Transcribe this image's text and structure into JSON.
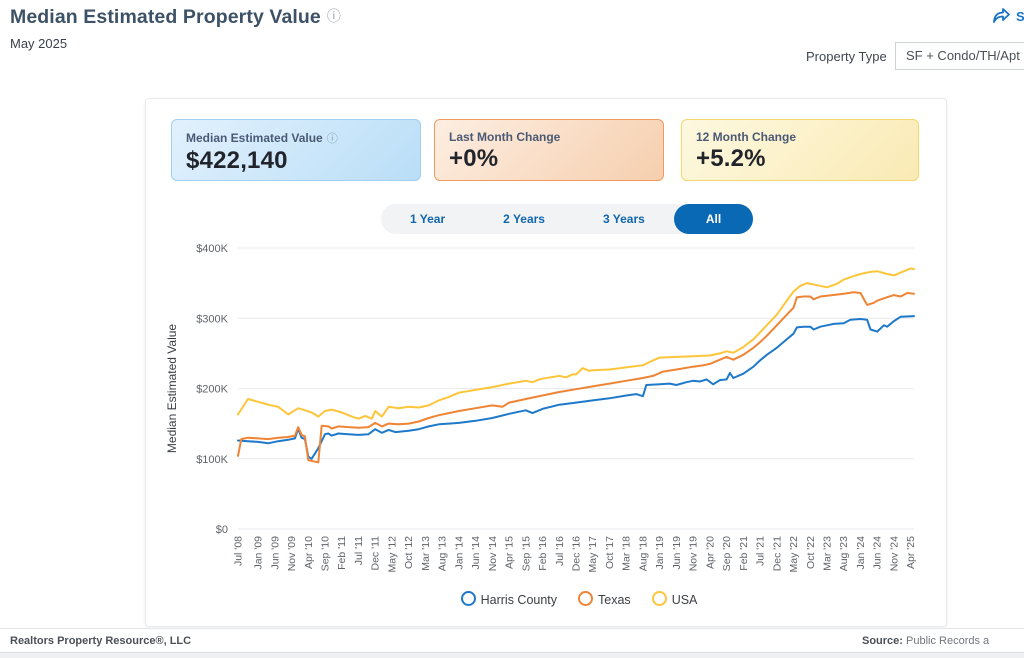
{
  "header": {
    "title": "Median Estimated Property Value",
    "date": "May 2025",
    "share_label": "S",
    "property_type_label": "Property Type",
    "property_type_value": "SF + Condo/TH/Apt"
  },
  "icons": {
    "info": "ⓘ"
  },
  "stat_cards": [
    {
      "label": "Median Estimated Value",
      "value": "$422,140"
    },
    {
      "label": "Last Month Change",
      "value": "+0%"
    },
    {
      "label": "12 Month Change",
      "value": "+5.2%"
    }
  ],
  "range_tabs": [
    {
      "label": "1 Year",
      "selected": false
    },
    {
      "label": "2 Years",
      "selected": false
    },
    {
      "label": "3 Years",
      "selected": false
    },
    {
      "label": "All",
      "selected": true
    }
  ],
  "chart_data": {
    "type": "line",
    "title": "Median Estimated Property Value",
    "ylabel": "Median Estimated Value",
    "values_unit": "USD thousands",
    "ylim": [
      0,
      400
    ],
    "grid": "horizontal",
    "legend_position": "bottom",
    "y_ticks": [
      {
        "label": "$0",
        "value": 0
      },
      {
        "label": "$100K",
        "value": 100
      },
      {
        "label": "$200K",
        "value": 200
      },
      {
        "label": "$300K",
        "value": 300
      },
      {
        "label": "$400K",
        "value": 400
      }
    ],
    "x_month_range": [
      0,
      202
    ],
    "x_start": "Jul 2008",
    "x_end": "May 2025",
    "x_ticks": [
      {
        "label": "Jul '08",
        "month": 0
      },
      {
        "label": "Jan '09",
        "month": 6
      },
      {
        "label": "Jun '09",
        "month": 11
      },
      {
        "label": "Nov '09",
        "month": 16
      },
      {
        "label": "Apr '10",
        "month": 21
      },
      {
        "label": "Sep '10",
        "month": 26
      },
      {
        "label": "Feb '11",
        "month": 31
      },
      {
        "label": "Jul '11",
        "month": 36
      },
      {
        "label": "Dec '11",
        "month": 41
      },
      {
        "label": "May '12",
        "month": 46
      },
      {
        "label": "Oct '12",
        "month": 51
      },
      {
        "label": "Mar '13",
        "month": 56
      },
      {
        "label": "Aug '13",
        "month": 61
      },
      {
        "label": "Jan '14",
        "month": 66
      },
      {
        "label": "Jun '14",
        "month": 71
      },
      {
        "label": "Nov '14",
        "month": 76
      },
      {
        "label": "Apr '15",
        "month": 81
      },
      {
        "label": "Sep '15",
        "month": 86
      },
      {
        "label": "Feb '16",
        "month": 91
      },
      {
        "label": "Jul '16",
        "month": 96
      },
      {
        "label": "Dec '16",
        "month": 101
      },
      {
        "label": "May '17",
        "month": 106
      },
      {
        "label": "Oct '17",
        "month": 111
      },
      {
        "label": "Mar '18",
        "month": 116
      },
      {
        "label": "Aug '18",
        "month": 121
      },
      {
        "label": "Jan '19",
        "month": 126
      },
      {
        "label": "Jun '19",
        "month": 131
      },
      {
        "label": "Nov '19",
        "month": 136
      },
      {
        "label": "Apr '20",
        "month": 141
      },
      {
        "label": "Sep '20",
        "month": 146
      },
      {
        "label": "Feb '21",
        "month": 151
      },
      {
        "label": "Jul '21",
        "month": 156
      },
      {
        "label": "Dec '21",
        "month": 161
      },
      {
        "label": "May '22",
        "month": 166
      },
      {
        "label": "Oct '22",
        "month": 171
      },
      {
        "label": "Mar '23",
        "month": 176
      },
      {
        "label": "Aug '23",
        "month": 181
      },
      {
        "label": "Jan '24",
        "month": 186
      },
      {
        "label": "Jun '24",
        "month": 191
      },
      {
        "label": "Nov '24",
        "month": 196
      },
      {
        "label": "Apr '25",
        "month": 201
      }
    ],
    "series": [
      {
        "name": "Harris County",
        "color": "#1e79ca",
        "points": [
          [
            0,
            126
          ],
          [
            3,
            125
          ],
          [
            6,
            124
          ],
          [
            9,
            122
          ],
          [
            12,
            125
          ],
          [
            15,
            127
          ],
          [
            17,
            129
          ],
          [
            18,
            143
          ],
          [
            19,
            130
          ],
          [
            20,
            128
          ],
          [
            21,
            103
          ],
          [
            22,
            100
          ],
          [
            24,
            115
          ],
          [
            26,
            135
          ],
          [
            27,
            136
          ],
          [
            28,
            133
          ],
          [
            30,
            136
          ],
          [
            33,
            135
          ],
          [
            36,
            134
          ],
          [
            39,
            135
          ],
          [
            41,
            142
          ],
          [
            43,
            137
          ],
          [
            45,
            141
          ],
          [
            47,
            138
          ],
          [
            51,
            140
          ],
          [
            54,
            142
          ],
          [
            57,
            146
          ],
          [
            60,
            149
          ],
          [
            63,
            150
          ],
          [
            66,
            151
          ],
          [
            71,
            154
          ],
          [
            76,
            158
          ],
          [
            81,
            164
          ],
          [
            84,
            167
          ],
          [
            86,
            169
          ],
          [
            88,
            165
          ],
          [
            91,
            171
          ],
          [
            96,
            177
          ],
          [
            101,
            180
          ],
          [
            106,
            183
          ],
          [
            111,
            186
          ],
          [
            116,
            190
          ],
          [
            119,
            192
          ],
          [
            121,
            189
          ],
          [
            122,
            205
          ],
          [
            126,
            206
          ],
          [
            129,
            207
          ],
          [
            131,
            205
          ],
          [
            134,
            209
          ],
          [
            136,
            211
          ],
          [
            138,
            210
          ],
          [
            140,
            213
          ],
          [
            142,
            206
          ],
          [
            144,
            212
          ],
          [
            146,
            213
          ],
          [
            147,
            222
          ],
          [
            148,
            215
          ],
          [
            151,
            221
          ],
          [
            154,
            231
          ],
          [
            156,
            240
          ],
          [
            158,
            248
          ],
          [
            161,
            258
          ],
          [
            164,
            270
          ],
          [
            166,
            278
          ],
          [
            167,
            287
          ],
          [
            169,
            288
          ],
          [
            171,
            288
          ],
          [
            172,
            284
          ],
          [
            174,
            288
          ],
          [
            176,
            290
          ],
          [
            178,
            292
          ],
          [
            181,
            293
          ],
          [
            183,
            298
          ],
          [
            186,
            299
          ],
          [
            188,
            298
          ],
          [
            189,
            284
          ],
          [
            191,
            281
          ],
          [
            193,
            290
          ],
          [
            194,
            288
          ],
          [
            196,
            296
          ],
          [
            198,
            302
          ],
          [
            202,
            303
          ]
        ]
      },
      {
        "name": "Texas",
        "color": "#ee8434",
        "points": [
          [
            0,
            104
          ],
          [
            1,
            128
          ],
          [
            3,
            130
          ],
          [
            6,
            129
          ],
          [
            9,
            128
          ],
          [
            12,
            130
          ],
          [
            15,
            131
          ],
          [
            17,
            133
          ],
          [
            18,
            145
          ],
          [
            19,
            134
          ],
          [
            20,
            132
          ],
          [
            21,
            98
          ],
          [
            23,
            96
          ],
          [
            24,
            95
          ],
          [
            25,
            147
          ],
          [
            27,
            146
          ],
          [
            28,
            143
          ],
          [
            30,
            146
          ],
          [
            33,
            145
          ],
          [
            36,
            144
          ],
          [
            39,
            145
          ],
          [
            41,
            151
          ],
          [
            43,
            146
          ],
          [
            45,
            150
          ],
          [
            48,
            149
          ],
          [
            51,
            150
          ],
          [
            54,
            153
          ],
          [
            57,
            158
          ],
          [
            60,
            162
          ],
          [
            63,
            165
          ],
          [
            66,
            168
          ],
          [
            71,
            172
          ],
          [
            76,
            176
          ],
          [
            79,
            174
          ],
          [
            81,
            180
          ],
          [
            86,
            185
          ],
          [
            91,
            190
          ],
          [
            96,
            195
          ],
          [
            101,
            199
          ],
          [
            106,
            203
          ],
          [
            111,
            207
          ],
          [
            116,
            211
          ],
          [
            121,
            215
          ],
          [
            124,
            218
          ],
          [
            127,
            224
          ],
          [
            131,
            227
          ],
          [
            136,
            231
          ],
          [
            139,
            233
          ],
          [
            141,
            235
          ],
          [
            144,
            241
          ],
          [
            146,
            245
          ],
          [
            148,
            241
          ],
          [
            151,
            248
          ],
          [
            154,
            258
          ],
          [
            156,
            266
          ],
          [
            158,
            275
          ],
          [
            161,
            290
          ],
          [
            164,
            305
          ],
          [
            166,
            315
          ],
          [
            167,
            330
          ],
          [
            169,
            331
          ],
          [
            171,
            331
          ],
          [
            172,
            327
          ],
          [
            174,
            331
          ],
          [
            176,
            332
          ],
          [
            181,
            335
          ],
          [
            184,
            337
          ],
          [
            186,
            336
          ],
          [
            188,
            319
          ],
          [
            190,
            322
          ],
          [
            191,
            325
          ],
          [
            194,
            330
          ],
          [
            196,
            333
          ],
          [
            198,
            331
          ],
          [
            200,
            336
          ],
          [
            202,
            335
          ]
        ]
      },
      {
        "name": "USA",
        "color": "#fdc53a",
        "points": [
          [
            0,
            163
          ],
          [
            3,
            185
          ],
          [
            6,
            181
          ],
          [
            9,
            177
          ],
          [
            12,
            174
          ],
          [
            15,
            163
          ],
          [
            18,
            172
          ],
          [
            20,
            169
          ],
          [
            22,
            166
          ],
          [
            24,
            160
          ],
          [
            26,
            168
          ],
          [
            28,
            170
          ],
          [
            31,
            166
          ],
          [
            34,
            160
          ],
          [
            36,
            157
          ],
          [
            38,
            161
          ],
          [
            40,
            157
          ],
          [
            41,
            168
          ],
          [
            43,
            160
          ],
          [
            45,
            174
          ],
          [
            48,
            172
          ],
          [
            51,
            174
          ],
          [
            54,
            173
          ],
          [
            57,
            176
          ],
          [
            60,
            183
          ],
          [
            63,
            188
          ],
          [
            66,
            194
          ],
          [
            71,
            198
          ],
          [
            76,
            202
          ],
          [
            81,
            207
          ],
          [
            86,
            211
          ],
          [
            88,
            209
          ],
          [
            90,
            213
          ],
          [
            91,
            214
          ],
          [
            96,
            218
          ],
          [
            98,
            216
          ],
          [
            100,
            220
          ],
          [
            101,
            220
          ],
          [
            103,
            229
          ],
          [
            105,
            225
          ],
          [
            106,
            226
          ],
          [
            111,
            227
          ],
          [
            116,
            230
          ],
          [
            121,
            233
          ],
          [
            124,
            240
          ],
          [
            126,
            244
          ],
          [
            131,
            245
          ],
          [
            136,
            246
          ],
          [
            141,
            247
          ],
          [
            144,
            250
          ],
          [
            146,
            253
          ],
          [
            148,
            251
          ],
          [
            151,
            259
          ],
          [
            154,
            270
          ],
          [
            156,
            280
          ],
          [
            158,
            290
          ],
          [
            161,
            305
          ],
          [
            164,
            325
          ],
          [
            166,
            338
          ],
          [
            168,
            346
          ],
          [
            170,
            350
          ],
          [
            173,
            347
          ],
          [
            176,
            344
          ],
          [
            179,
            349
          ],
          [
            181,
            355
          ],
          [
            184,
            360
          ],
          [
            186,
            363
          ],
          [
            189,
            366
          ],
          [
            191,
            367
          ],
          [
            194,
            363
          ],
          [
            196,
            361
          ],
          [
            198,
            365
          ],
          [
            201,
            371
          ],
          [
            202,
            370
          ]
        ]
      }
    ]
  },
  "footer": {
    "left": "Realtors Property Resource®, LLC",
    "source_label": "Source:",
    "source_text": " Public Records a"
  }
}
